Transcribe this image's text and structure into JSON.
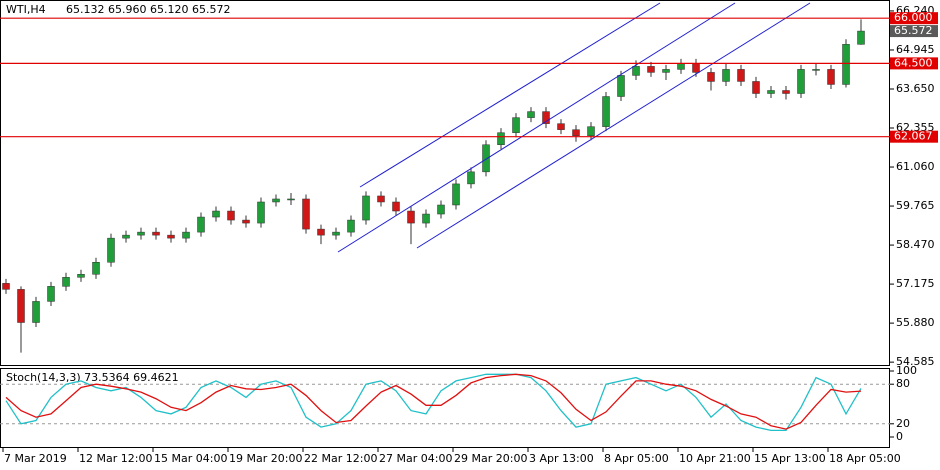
{
  "chart_data": {
    "type": "candlestick",
    "header": {
      "symbol": "WTI,H4",
      "quote": "65.132 65.960 65.120 65.572"
    },
    "categories": [
      "7 Mar 2019",
      null,
      null,
      null,
      null,
      "12 Mar 12:00",
      null,
      null,
      null,
      null,
      "15 Mar 04:00",
      null,
      null,
      null,
      null,
      "19 Mar 20:00",
      null,
      null,
      null,
      null,
      "22 Mar 12:00",
      null,
      null,
      null,
      null,
      "27 Mar 04:00",
      null,
      null,
      null,
      null,
      "29 Mar 20:00",
      null,
      null,
      null,
      null,
      "3 Apr 13:00",
      null,
      null,
      null,
      null,
      "8 Apr 05:00",
      null,
      null,
      null,
      null,
      "10 Apr 21:00",
      null,
      null,
      null,
      null,
      "15 Apr 13:00",
      null,
      null,
      null,
      null,
      "18 Apr 05:00",
      null,
      null
    ],
    "open": [
      57.2,
      57.0,
      55.9,
      56.6,
      57.1,
      57.4,
      57.5,
      57.9,
      58.7,
      58.8,
      58.9,
      58.8,
      58.7,
      58.9,
      59.4,
      59.6,
      59.3,
      59.2,
      59.9,
      60.0,
      60.0,
      59.0,
      58.8,
      58.9,
      59.3,
      60.1,
      59.9,
      59.6,
      59.2,
      59.5,
      59.8,
      60.5,
      60.9,
      61.8,
      62.2,
      62.7,
      62.9,
      62.5,
      62.3,
      62.1,
      62.4,
      63.4,
      64.1,
      64.4,
      64.2,
      64.3,
      64.5,
      64.2,
      63.9,
      64.3,
      63.9,
      63.5,
      63.6,
      63.5,
      64.3,
      64.3,
      63.8,
      65.132
    ],
    "high": [
      57.35,
      57.1,
      56.75,
      57.25,
      57.55,
      57.65,
      58.05,
      58.85,
      58.95,
      59.05,
      59.05,
      58.95,
      59.05,
      59.55,
      59.75,
      59.75,
      59.45,
      60.05,
      60.15,
      60.2,
      60.15,
      59.15,
      59.05,
      59.45,
      60.25,
      60.25,
      60.05,
      59.75,
      59.65,
      59.95,
      60.65,
      61.05,
      61.95,
      62.35,
      62.85,
      63.05,
      63.05,
      62.65,
      62.45,
      62.55,
      63.55,
      64.25,
      64.6,
      64.55,
      64.45,
      64.65,
      64.65,
      64.35,
      64.5,
      64.45,
      64.05,
      63.75,
      63.75,
      64.45,
      64.5,
      64.45,
      65.3,
      65.96
    ],
    "low": [
      56.85,
      54.9,
      55.75,
      56.45,
      56.95,
      57.25,
      57.35,
      57.75,
      58.55,
      58.65,
      58.65,
      58.55,
      58.55,
      58.75,
      59.25,
      59.15,
      59.05,
      59.05,
      59.75,
      59.8,
      58.85,
      58.5,
      58.65,
      58.75,
      59.15,
      59.75,
      59.45,
      58.5,
      59.05,
      59.35,
      59.65,
      60.35,
      60.75,
      61.65,
      62.05,
      62.55,
      62.35,
      62.15,
      61.9,
      61.95,
      62.25,
      63.25,
      63.95,
      64.05,
      63.95,
      64.15,
      64.05,
      63.6,
      63.75,
      63.75,
      63.35,
      63.35,
      63.3,
      63.35,
      64.1,
      63.65,
      63.7,
      65.12
    ],
    "close": [
      57.0,
      55.9,
      56.6,
      57.1,
      57.4,
      57.5,
      57.9,
      58.7,
      58.8,
      58.9,
      58.8,
      58.7,
      58.9,
      59.4,
      59.6,
      59.3,
      59.2,
      59.9,
      60.0,
      60.0,
      59.0,
      58.8,
      58.9,
      59.3,
      60.1,
      59.9,
      59.6,
      59.2,
      59.5,
      59.8,
      60.5,
      60.9,
      61.8,
      62.2,
      62.7,
      62.9,
      62.5,
      62.3,
      62.1,
      62.4,
      63.4,
      64.1,
      64.4,
      64.2,
      64.3,
      64.5,
      64.2,
      63.9,
      64.3,
      63.9,
      63.5,
      63.6,
      63.5,
      64.3,
      64.3,
      63.8,
      65.132,
      65.572
    ],
    "up_color": "#1f9e3a",
    "down_color": "#d01818",
    "ylim": [
      54.49,
      66.57
    ],
    "yticks": [
      {
        "value": 66.24,
        "label": "66.240"
      },
      64.945,
      {
        "value": 63.65,
        "label": "63.650"
      },
      62.355,
      {
        "value": 61.06,
        "label": "61.060"
      },
      59.765,
      {
        "value": 58.47,
        "label": "58.470"
      },
      57.175,
      {
        "value": 55.88,
        "label": "55.880"
      },
      54.585
    ],
    "levels": [
      {
        "value": 66,
        "label": "66.000"
      },
      {
        "value": 64.5,
        "label": "64.500"
      },
      {
        "value": 62.067,
        "label": "62.067"
      }
    ],
    "level_color": "#e00000",
    "stochastic": {
      "title": "Stoch(14,3,3) 73.5364 69.4621",
      "ylim": [
        0,
        100
      ],
      "yticks": [
        100,
        80,
        20,
        0
      ],
      "series": [
        {
          "name": "%K",
          "color": "#20c0c8",
          "values": [
            55,
            20,
            25,
            60,
            80,
            85,
            75,
            70,
            75,
            60,
            40,
            35,
            45,
            75,
            85,
            75,
            60,
            80,
            85,
            75,
            30,
            15,
            20,
            40,
            80,
            85,
            70,
            40,
            35,
            70,
            85,
            90,
            95,
            95,
            95,
            90,
            70,
            40,
            15,
            20,
            80,
            85,
            90,
            80,
            70,
            80,
            60,
            30,
            50,
            25,
            15,
            10,
            10,
            45,
            90,
            80,
            35,
            73.5364
          ]
        },
        {
          "name": "%D",
          "color": "#e01010",
          "values": [
            60,
            40,
            30,
            35,
            55,
            75,
            80,
            77,
            73,
            68,
            58,
            45,
            40,
            52,
            68,
            78,
            73,
            72,
            75,
            80,
            63,
            40,
            22,
            25,
            47,
            68,
            78,
            65,
            48,
            48,
            63,
            82,
            90,
            93,
            95,
            93,
            85,
            67,
            42,
            25,
            38,
            62,
            85,
            85,
            80,
            77,
            70,
            57,
            47,
            35,
            30,
            17,
            12,
            22,
            48,
            72,
            68,
            69.4621
          ]
        }
      ]
    }
  }
}
